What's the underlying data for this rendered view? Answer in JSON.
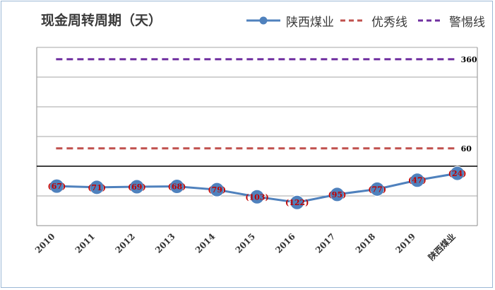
{
  "chart_data": {
    "type": "line",
    "title": "现金周转周期（天）",
    "categories": [
      "2010",
      "2011",
      "2012",
      "2013",
      "2014",
      "2015",
      "2016",
      "2017",
      "2018",
      "2019",
      "陕西煤业"
    ],
    "series": [
      {
        "name": "陕西煤业",
        "values": [
          -67,
          -71,
          -69,
          -68,
          -79,
          -103,
          -122,
          -95,
          -77,
          -47,
          -24
        ],
        "data_labels": [
          "(67)",
          "(71)",
          "(69)",
          "(68)",
          "(79)",
          "(103)",
          "(122)",
          "(95)",
          "(77)",
          "(47)",
          "(24)"
        ],
        "color": "#4f81bd"
      },
      {
        "name": "优秀线",
        "value": 60,
        "value_label": "60",
        "color": "#c0504d",
        "style": "dashed"
      },
      {
        "name": "警惕线",
        "value": 360,
        "value_label": "360",
        "color": "#7030a0",
        "style": "dashed"
      }
    ],
    "y_axis_labels": "none",
    "grid": true,
    "legend": "top-right"
  }
}
